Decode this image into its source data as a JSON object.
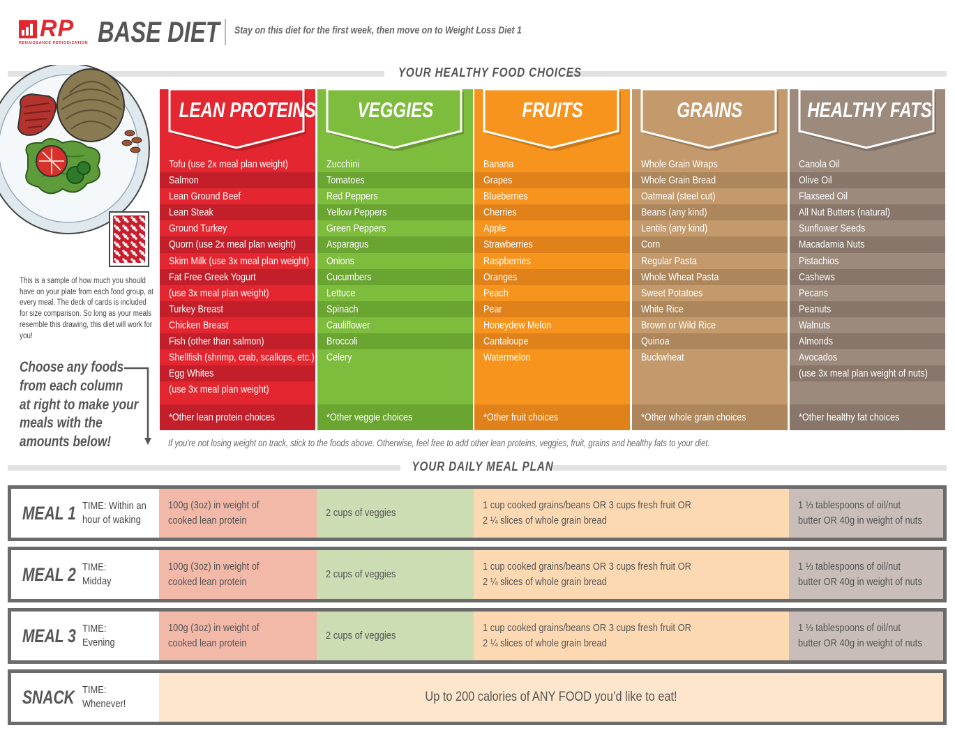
{
  "header": {
    "logo_text": "RP",
    "logo_tagline": "RENAISSANCE PERIODIZATION",
    "title": "BASE DIET",
    "subtitle": "Stay on this diet for the first week, then move on to Weight Loss Diet 1"
  },
  "sections": {
    "food_choices": "YOUR HEALTHY FOOD CHOICES",
    "meal_plan": "YOUR DAILY MEAL PLAN"
  },
  "sidebar": {
    "sample_text": "This is a sample of how much you should have on your plate from each food group, at every meal. The deck of cards is included for size comparison. So long as your meals resemble this drawing, this diet will work for you!",
    "choose_lines": [
      "Choose any foods",
      "from each column",
      "at right to make your",
      "meals with the",
      "amounts below!"
    ]
  },
  "colors": {
    "proteins": "#e3262f",
    "proteins_dark": "#c31f2a",
    "veggies": "#7ebc3d",
    "veggies_dark": "#6aa431",
    "fruits": "#f7941d",
    "fruits_dark": "#e0811a",
    "grains": "#c49a6c",
    "grains_dark": "#ad865b",
    "fats": "#9c8a7d",
    "fats_dark": "#877669"
  },
  "columns": [
    {
      "key": "proteins",
      "heading": "LEAN PROTEINS",
      "items": [
        "Tofu (use 2x meal plan weight)",
        "Salmon",
        "Lean Ground Beef",
        "Lean Steak",
        "Ground Turkey",
        "Quorn (use 2x meal plan weight)",
        "Skim Milk (use 3x meal plan weight)",
        "Fat Free Greek Yogurt",
        "(use 3x meal plan weight)",
        "Turkey Breast",
        "Chicken Breast",
        "Fish (other than salmon)",
        "Shellfish (shrimp, crab, scallops, etc.)",
        "Egg Whites",
        "(use 3x meal plan weight)"
      ],
      "other": "*Other lean protein choices"
    },
    {
      "key": "veggies",
      "heading": "VEGGIES",
      "items": [
        "Zucchini",
        "Tomatoes",
        "Red Peppers",
        "Yellow Peppers",
        "Green Peppers",
        "Asparagus",
        "Onions",
        "Cucumbers",
        "Lettuce",
        "Spinach",
        "Cauliflower",
        "Broccoli",
        "Celery"
      ],
      "other": "*Other veggie choices"
    },
    {
      "key": "fruits",
      "heading": "FRUITS",
      "items": [
        "Banana",
        "Grapes",
        "Blueberries",
        "Cherries",
        "Apple",
        "Strawberries",
        "Raspberries",
        "Oranges",
        "Peach",
        "Pear",
        "Honeydew Melon",
        "Cantaloupe",
        "Watermelon"
      ],
      "other": "*Other fruit choices"
    },
    {
      "key": "grains",
      "heading": "GRAINS",
      "items": [
        "Whole Grain Wraps",
        "Whole Grain Bread",
        "Oatmeal (steel cut)",
        "Beans (any kind)",
        "Lentils (any kind)",
        "Corn",
        "Regular Pasta",
        "Whole Wheat Pasta",
        "Sweet Potatoes",
        "White Rice",
        "Brown or Wild Rice",
        "Quinoa",
        "Buckwheat"
      ],
      "other": "*Other whole grain choices"
    },
    {
      "key": "fats",
      "heading": "HEALTHY FATS",
      "items": [
        "Canola Oil",
        "Olive Oil",
        "Flaxseed Oil",
        "All Nut Butters (natural)",
        "Sunflower Seeds",
        "Macadamia Nuts",
        "Pistachios",
        "Cashews",
        "Pecans",
        "Peanuts",
        "Walnuts",
        "Almonds",
        "Avocados",
        "(use 3x meal plan weight of nuts)"
      ],
      "other": "*Other  healthy fat choices"
    }
  ],
  "note": "If you're not losing weight on track, stick to the foods above. Otherwise, feel free to add other lean proteins, veggies, fruit, grains and healthy fats to your diet.",
  "meals": [
    {
      "name": "MEAL 1",
      "time": [
        "TIME: Within an",
        "hour of waking"
      ],
      "protein": [
        "100g (3oz) in weight of",
        "cooked lean protein"
      ],
      "veggies": [
        "2 cups of veggies"
      ],
      "carbs": [
        "1 cup cooked grains/beans OR 3 cups fresh fruit OR",
        "2 ¼ slices of whole grain bread"
      ],
      "fats": [
        "1 ⅓ tablespoons of oil/nut",
        "butter OR 40g in weight of nuts"
      ]
    },
    {
      "name": "MEAL 2",
      "time": [
        "TIME:",
        "Midday"
      ],
      "protein": [
        "100g (3oz) in weight of",
        "cooked lean protein"
      ],
      "veggies": [
        "2 cups of veggies"
      ],
      "carbs": [
        "1 cup cooked grains/beans OR 3 cups fresh fruit OR",
        "2 ¼ slices of whole grain bread"
      ],
      "fats": [
        "1 ⅓ tablespoons of oil/nut",
        "butter OR 40g in weight of nuts"
      ]
    },
    {
      "name": "MEAL 3",
      "time": [
        "TIME:",
        "Evening"
      ],
      "protein": [
        "100g (3oz) in weight of",
        "cooked lean protein"
      ],
      "veggies": [
        "2 cups of veggies"
      ],
      "carbs": [
        "1 cup cooked grains/beans OR 3 cups fresh fruit OR",
        "2 ¼ slices of whole grain bread"
      ],
      "fats": [
        "1 ⅓ tablespoons of oil/nut",
        "butter OR 40g in weight of nuts"
      ]
    }
  ],
  "snack": {
    "name": "SNACK",
    "time": [
      "TIME:",
      "Whenever!"
    ],
    "text": "Up to 200 calories of ANY FOOD you’d like to eat!"
  },
  "meal_colors": {
    "protein": "#f2b8a8",
    "veggies": "#ccdcb3",
    "carbs": "#fdd9b3",
    "fats": "#c8bdb8",
    "snack": "#fde6cc"
  }
}
